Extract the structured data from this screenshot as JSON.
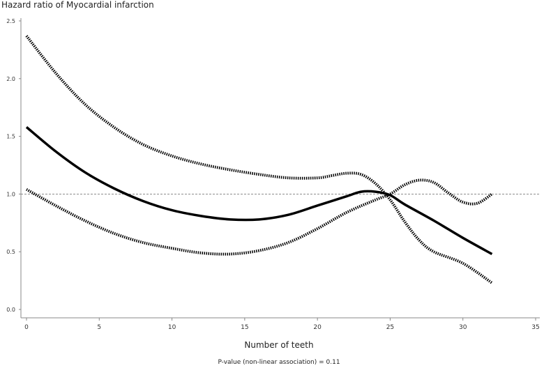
{
  "chart_data": {
    "type": "line",
    "title": "Hazard ratio of Myocardial infarction",
    "xlabel": "Number of teeth",
    "ylabel": "",
    "footnote": "P-value (non-linear association) = 0.11",
    "xlim": [
      0,
      35
    ],
    "ylim": [
      0.0,
      2.5
    ],
    "xticks": [
      0,
      5,
      10,
      15,
      20,
      25,
      30,
      35
    ],
    "yticks": [
      "0.0",
      "0.5",
      "1.0",
      "1.5",
      "2.0",
      "2.5"
    ],
    "reference_line": 1.0,
    "grid": false,
    "series": [
      {
        "style": "solid",
        "x": [
          0,
          2,
          4,
          6,
          8,
          10,
          12,
          14,
          16,
          18,
          20,
          22,
          23,
          24,
          25,
          26,
          28,
          30,
          32
        ],
        "y": [
          1.58,
          1.37,
          1.19,
          1.05,
          0.94,
          0.86,
          0.81,
          0.78,
          0.78,
          0.82,
          0.9,
          0.98,
          1.02,
          1.02,
          0.99,
          0.91,
          0.77,
          0.62,
          0.48
        ]
      },
      {
        "style": "dotted",
        "x": [
          0,
          2,
          4,
          6,
          8,
          10,
          12,
          14,
          16,
          18,
          20,
          21,
          22,
          23,
          24,
          25,
          26,
          27,
          28,
          30,
          32
        ],
        "y": [
          2.37,
          2.05,
          1.78,
          1.58,
          1.43,
          1.33,
          1.26,
          1.21,
          1.17,
          1.14,
          1.14,
          1.16,
          1.18,
          1.17,
          1.09,
          0.95,
          0.76,
          0.6,
          0.5,
          0.4,
          0.23
        ]
      },
      {
        "style": "dotted",
        "x": [
          0,
          2,
          4,
          6,
          8,
          10,
          12,
          14,
          16,
          18,
          20,
          22,
          24,
          25,
          26,
          27,
          28,
          29,
          30,
          31,
          32
        ],
        "y": [
          1.04,
          0.9,
          0.77,
          0.66,
          0.58,
          0.53,
          0.49,
          0.48,
          0.51,
          0.58,
          0.7,
          0.84,
          0.95,
          1.0,
          1.08,
          1.12,
          1.1,
          1.01,
          0.93,
          0.92,
          1.0
        ]
      }
    ]
  }
}
